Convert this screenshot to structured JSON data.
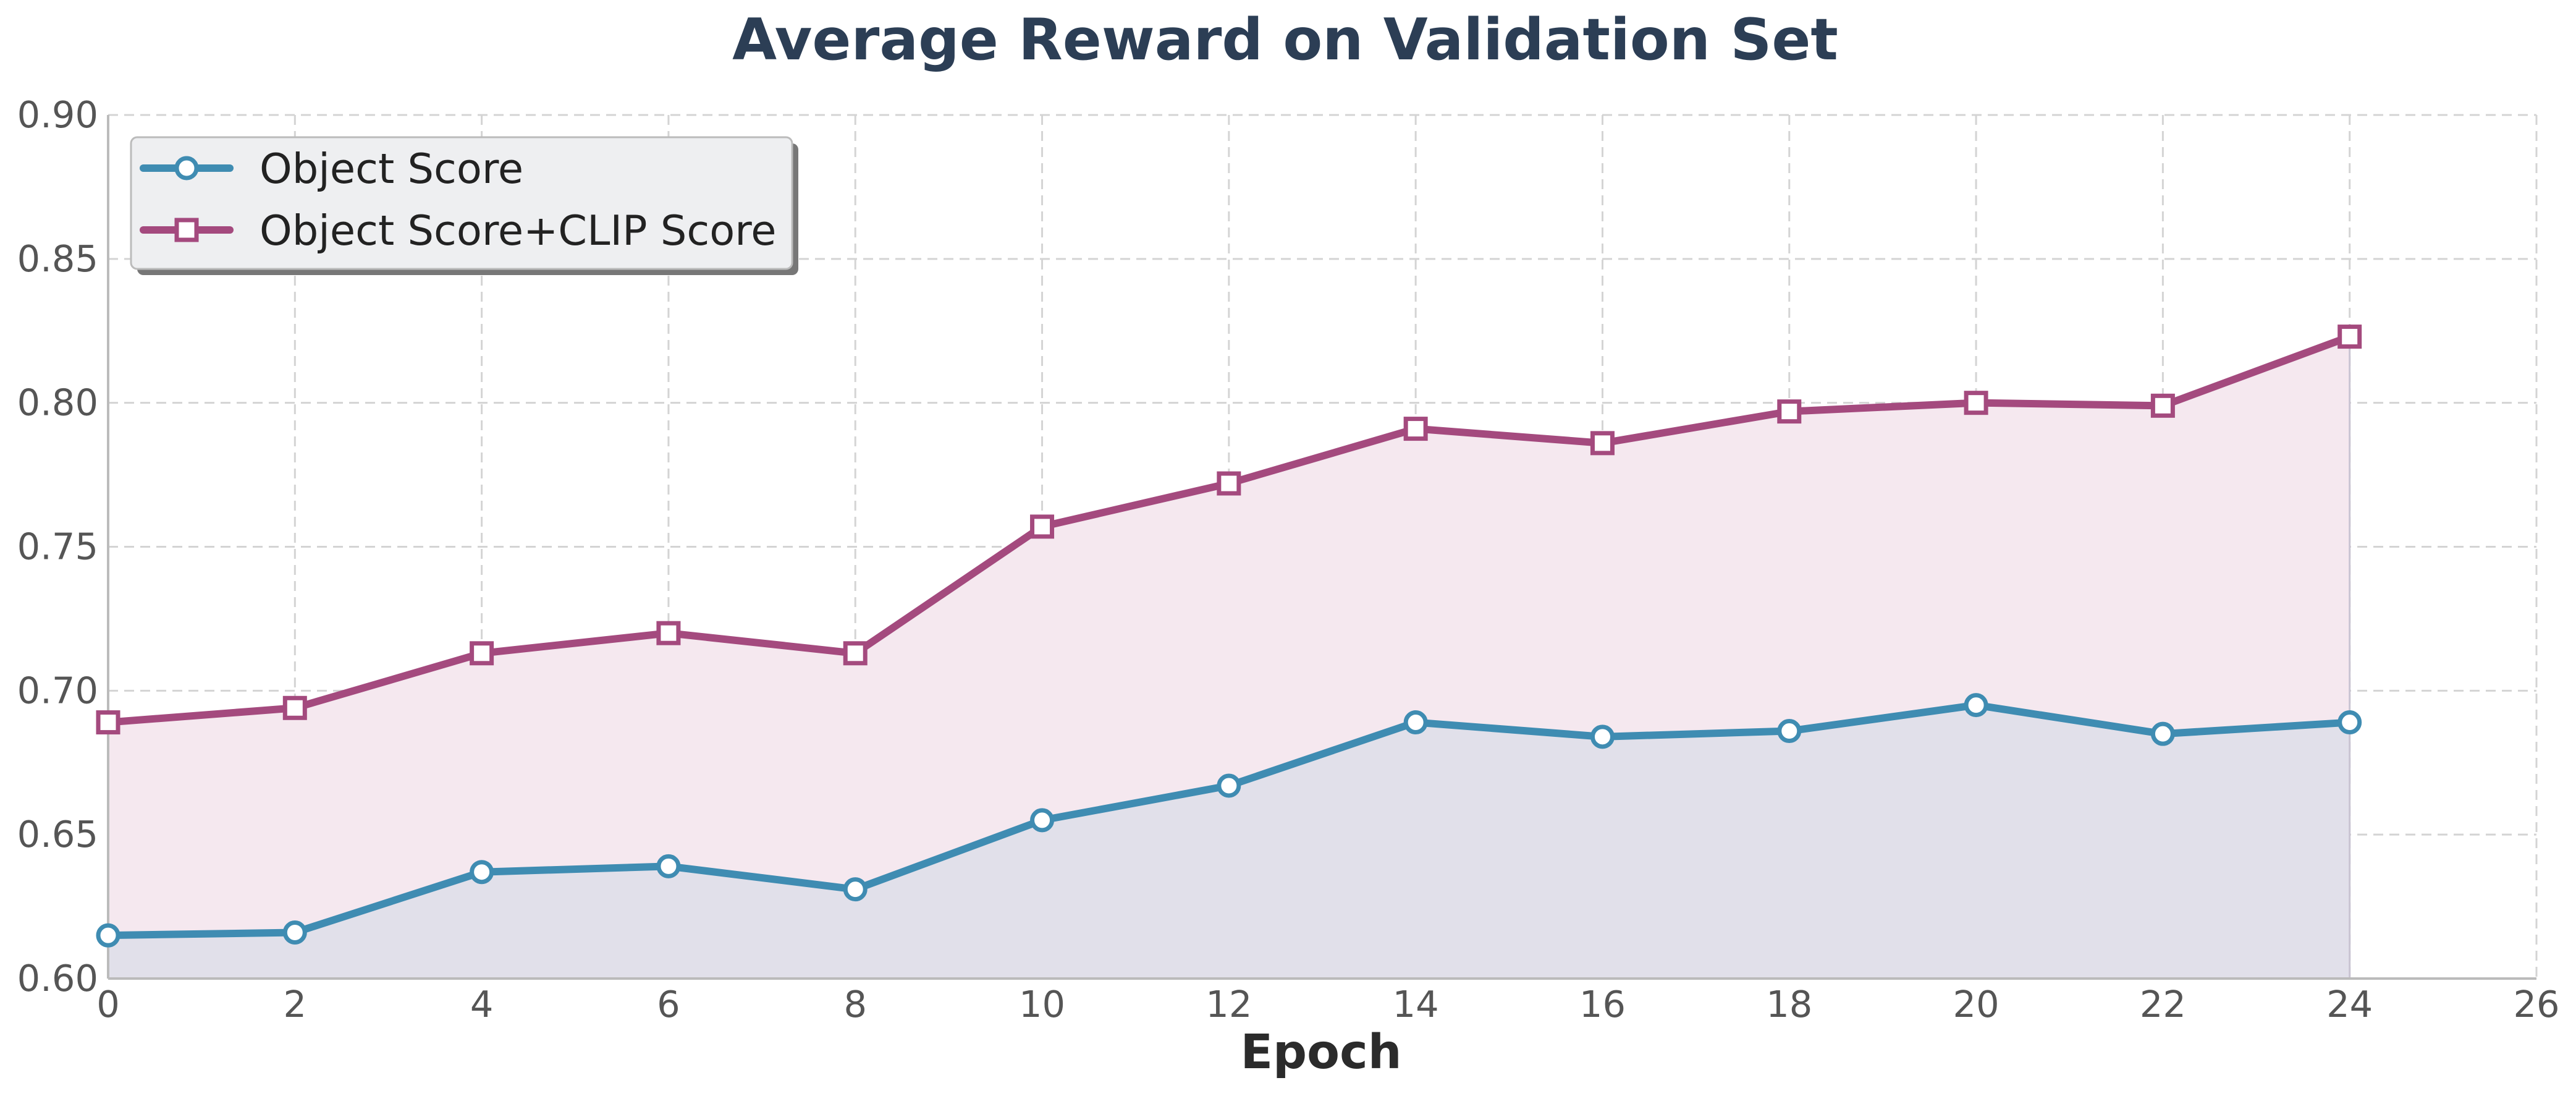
{
  "chart_data": {
    "type": "line",
    "title": "Average Reward on Validation Set",
    "xlabel": "Epoch",
    "ylabel": "",
    "xlim": [
      0,
      26
    ],
    "ylim": [
      0.6,
      0.9
    ],
    "x_ticks": [
      "0",
      "2",
      "4",
      "6",
      "8",
      "10",
      "12",
      "14",
      "16",
      "18",
      "20",
      "22",
      "24",
      "26"
    ],
    "y_ticks": [
      "0.60",
      "0.65",
      "0.70",
      "0.75",
      "0.80",
      "0.85",
      "0.90"
    ],
    "grid": true,
    "legend_position": "top-left",
    "x": [
      0,
      2,
      4,
      6,
      8,
      10,
      12,
      14,
      16,
      18,
      20,
      22,
      24
    ],
    "series": [
      {
        "name": "Object Score",
        "marker": "circle",
        "color": "#3f8cb2",
        "fill": "#e1e0ea",
        "values": [
          0.615,
          0.616,
          0.637,
          0.639,
          0.631,
          0.655,
          0.667,
          0.689,
          0.684,
          0.686,
          0.695,
          0.685,
          0.689
        ]
      },
      {
        "name": "Object Score+CLIP Score",
        "marker": "square",
        "color": "#a44a7e",
        "fill": "#f5e8ef",
        "values": [
          0.689,
          0.694,
          0.713,
          0.72,
          0.713,
          0.757,
          0.772,
          0.791,
          0.786,
          0.797,
          0.8,
          0.799,
          0.823
        ]
      }
    ]
  }
}
